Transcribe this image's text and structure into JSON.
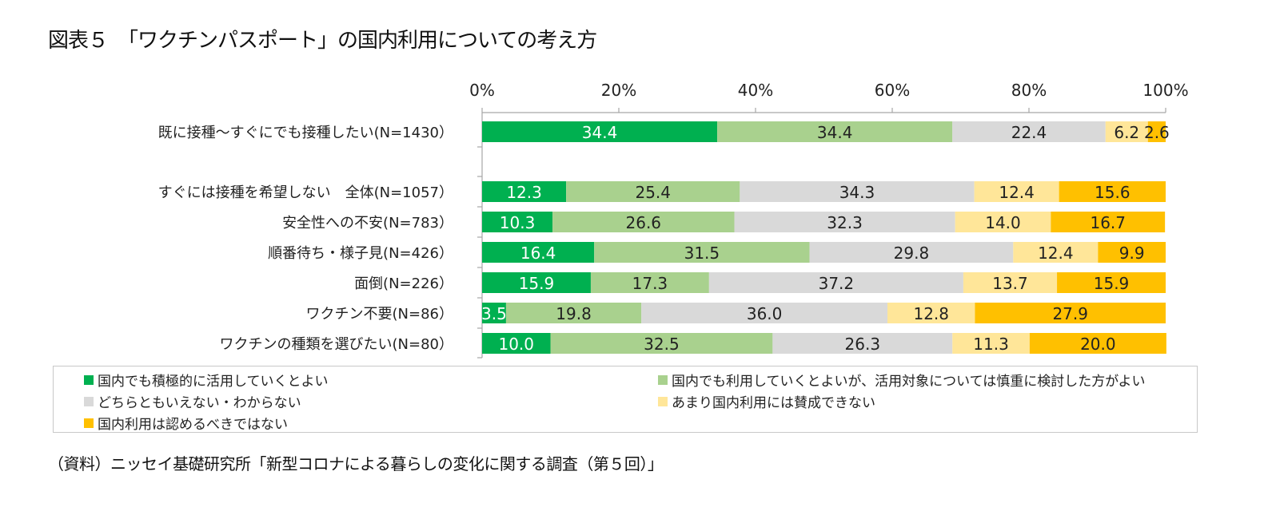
{
  "title": "図表５　「ワクチンパスポート」の国内利用についての考え方",
  "source": "（資料）ニッセイ基礎研究所「新型コロナによる暮らしの変化に関する調査（第５回）」",
  "chart_data": {
    "type": "bar",
    "orientation": "horizontal",
    "stacked": "percent",
    "title": "図表５　「ワクチンパスポート」の国内利用についての考え方",
    "xlabel": "",
    "ylabel": "",
    "xlim": [
      0,
      100
    ],
    "x_ticks": [
      "0%",
      "20%",
      "40%",
      "60%",
      "80%",
      "100%"
    ],
    "x_axis_position": "top",
    "grid": false,
    "legend_position": "bottom",
    "categories": [
      "既に接種～すぐにでも接種したい(N=1430）",
      "",
      "すぐには接種を希望しない　全体(N=1057）",
      "安全性への不安(N=783）",
      "順番待ち・様子見(N=426）",
      "面倒(N=226）",
      "ワクチン不要(N=86）",
      "ワクチンの種類を選びたい(N=80）"
    ],
    "series": [
      {
        "name": "国内でも積極的に活用していくとよい",
        "color": "#00b050",
        "label_color": "#ffffff",
        "values": [
          34.4,
          null,
          12.3,
          10.3,
          16.4,
          15.9,
          3.5,
          10.0
        ]
      },
      {
        "name": "国内でも利用していくとよいが、活用対象については慎重に検討した方がよい",
        "color": "#a9d18e",
        "label_color": "#222222",
        "values": [
          34.4,
          null,
          25.4,
          26.6,
          31.5,
          17.3,
          19.8,
          32.5
        ]
      },
      {
        "name": "どちらともいえない・わからない",
        "color": "#d9d9d9",
        "label_color": "#222222",
        "values": [
          22.4,
          null,
          34.3,
          32.3,
          29.8,
          37.2,
          36.0,
          26.3
        ]
      },
      {
        "name": "あまり国内利用には賛成できない",
        "color": "#ffe699",
        "label_color": "#222222",
        "values": [
          6.2,
          null,
          12.4,
          14.0,
          12.4,
          13.7,
          12.8,
          11.3
        ]
      },
      {
        "name": "国内利用は認めるべきではない",
        "color": "#ffc000",
        "label_color": "#222222",
        "values": [
          2.6,
          null,
          15.6,
          16.7,
          9.9,
          15.9,
          27.9,
          20.0
        ]
      }
    ]
  }
}
